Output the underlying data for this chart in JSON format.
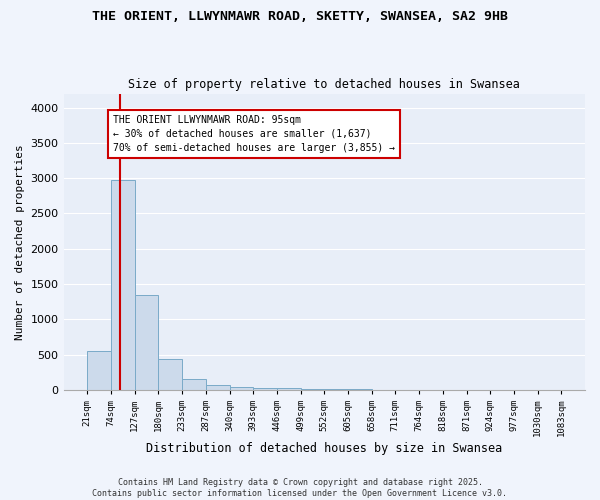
{
  "title_line1": "THE ORIENT, LLWYNMAWR ROAD, SKETTY, SWANSEA, SA2 9HB",
  "title_line2": "Size of property relative to detached houses in Swansea",
  "xlabel": "Distribution of detached houses by size in Swansea",
  "ylabel": "Number of detached properties",
  "bar_edges": [
    21,
    74,
    127,
    180,
    233,
    287,
    340,
    393,
    446,
    499,
    552,
    605,
    658,
    711,
    764,
    818,
    871,
    924,
    977,
    1030,
    1083
  ],
  "bar_heights": [
    550,
    2970,
    1340,
    430,
    155,
    75,
    40,
    30,
    25,
    8,
    5,
    5,
    3,
    2,
    2,
    2,
    1,
    1,
    1,
    1
  ],
  "bar_color": "#ccdaeb",
  "bar_edge_color": "#7aaac8",
  "red_line_x": 95,
  "annotation_text": "THE ORIENT LLWYNMAWR ROAD: 95sqm\n← 30% of detached houses are smaller (1,637)\n70% of semi-detached houses are larger (3,855) →",
  "annotation_box_color": "#ffffff",
  "annotation_box_edge": "#cc0000",
  "annotation_text_color": "#000000",
  "red_line_color": "#cc0000",
  "background_color": "#e8eef8",
  "fig_background_color": "#f0f4fc",
  "grid_color": "#ffffff",
  "ylim": [
    0,
    4200
  ],
  "yticks": [
    0,
    500,
    1000,
    1500,
    2000,
    2500,
    3000,
    3500,
    4000
  ],
  "footer_line1": "Contains HM Land Registry data © Crown copyright and database right 2025.",
  "footer_line2": "Contains public sector information licensed under the Open Government Licence v3.0."
}
